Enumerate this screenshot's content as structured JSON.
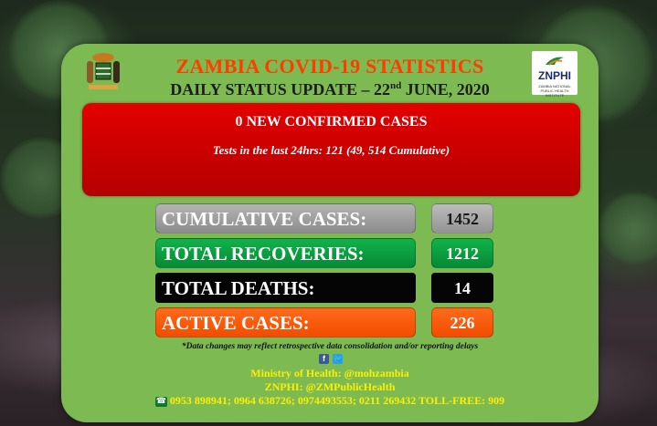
{
  "header": {
    "title": "ZAMBIA COVID-19 STATISTICS",
    "subtitle_pre": "DAILY STATUS UPDATE – 22",
    "subtitle_sup": "nd",
    "subtitle_post": " JUNE, 2020"
  },
  "logo": {
    "text": "ZNPHI",
    "small": "ZAMBIA NATIONAL PUBLIC HEALTH INSTITUTE"
  },
  "highlight": {
    "headline": "0 NEW CONFIRMED CASES",
    "tests": "Tests in the last 24hrs: 121 (49, 514 Cumulative)"
  },
  "stats": {
    "cumulative_label": "CUMULATIVE CASES:",
    "cumulative_value": "1452",
    "recoveries_label": "TOTAL RECOVERIES:",
    "recoveries_value": "1212",
    "deaths_label": "TOTAL DEATHS:",
    "deaths_value": "14",
    "active_label": "ACTIVE CASES:",
    "active_value": "226"
  },
  "disclaimer": "*Data changes may reflect retrospective data consolidation and/or reporting delays",
  "social": {
    "facebook_icon": "f",
    "twitter_icon": "t"
  },
  "footer": {
    "moh": "Ministry of Health: @mohzambia",
    "znphi": "ZNPHI: @ZMPublicHealth",
    "phones": "0953 898941; 0964 638726; 0974493553; 0211 269432 TOLL-FREE: 909"
  },
  "colors": {
    "panel": "#7dbb52",
    "title": "#ff3d00",
    "red_box": "#e30000",
    "recoveries": "#11b24b",
    "active": "#ff6a1a",
    "footer_text": "#ffee00"
  }
}
